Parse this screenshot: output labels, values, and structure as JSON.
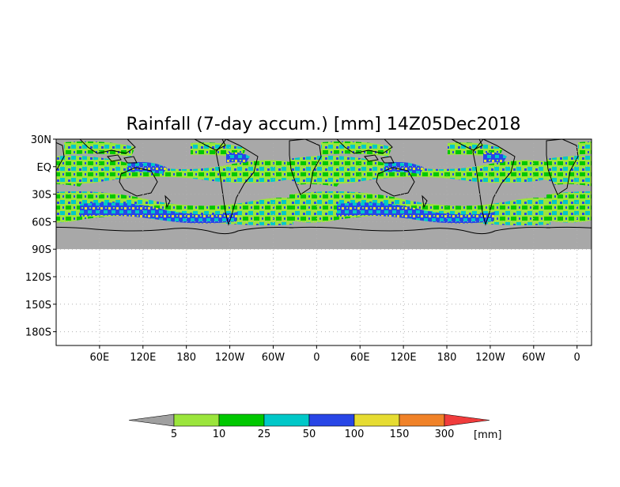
{
  "title": "Rainfall (7-day accum.) [mm] 14Z05Dec2018",
  "colors": {
    "nodata": "#a8a8a8",
    "land_outline": "#000000",
    "frame": "#000000",
    "grid": "#b0b0b0"
  },
  "y_axis": {
    "ticks": [
      "30N",
      "EQ",
      "30S",
      "60S",
      "90S",
      "120S",
      "150S",
      "180S"
    ],
    "values": [
      30,
      0,
      -30,
      -60,
      -90,
      -120,
      -150,
      -180
    ],
    "range": [
      30,
      -195
    ]
  },
  "x_axis": {
    "ticks": [
      "60E",
      "120E",
      "180",
      "120W",
      "60W",
      "0",
      "60E",
      "120E",
      "180",
      "120W",
      "60W",
      "0"
    ],
    "values": [
      60,
      120,
      180,
      240,
      300,
      360,
      420,
      480,
      540,
      600,
      660,
      720
    ],
    "range": [
      0,
      740
    ]
  },
  "map_extent": {
    "lat_top": 30,
    "lat_bottom": -90
  },
  "colorbar": {
    "labels": [
      "5",
      "10",
      "25",
      "50",
      "100",
      "150",
      "300"
    ],
    "unit": "[mm]",
    "colors": [
      "#a0a0a0",
      "#9be53c",
      "#00c800",
      "#00c8c8",
      "#2846e6",
      "#e6dc32",
      "#f08228",
      "#f03c3c"
    ]
  }
}
